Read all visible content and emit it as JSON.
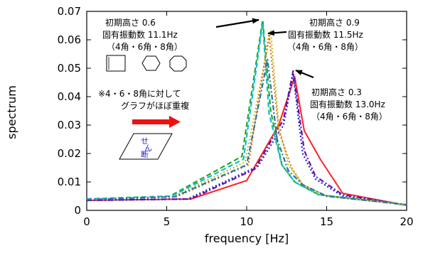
{
  "chart_data": {
    "type": "line",
    "xlabel": "frequency [Hz]",
    "ylabel": "spectrum",
    "xlim": [
      0,
      20
    ],
    "ylim": [
      0,
      0.07
    ],
    "x_ticks": [
      "0",
      "5",
      "10",
      "15",
      "20"
    ],
    "y_ticks": [
      "0",
      "0.01",
      "0.02",
      "0.03",
      "0.04",
      "0.05",
      "0.06",
      "0.07"
    ],
    "series": [
      {
        "color": "#ff2222",
        "dash": "solid",
        "points": [
          [
            0,
            0.0035
          ],
          [
            6.5,
            0.004
          ],
          [
            10,
            0.0105
          ],
          [
            12,
            0.03
          ],
          [
            13,
            0.047
          ],
          [
            13.6,
            0.028
          ],
          [
            14.6,
            0.018
          ],
          [
            16,
            0.006
          ],
          [
            20,
            0.0018
          ]
        ]
      },
      {
        "color": "#6a0dad",
        "dash": "dash-dot",
        "points": [
          [
            0,
            0.0035
          ],
          [
            6.5,
            0.004
          ],
          [
            10.5,
            0.0145
          ],
          [
            12.3,
            0.032
          ],
          [
            12.9,
            0.049
          ],
          [
            13.6,
            0.021
          ],
          [
            14.3,
            0.012
          ],
          [
            16,
            0.0055
          ],
          [
            20,
            0.0018
          ]
        ]
      },
      {
        "color": "#1f1fd0",
        "dash": "dotted",
        "points": [
          [
            0,
            0.0035
          ],
          [
            6.3,
            0.004
          ],
          [
            10.7,
            0.0155
          ],
          [
            12.3,
            0.03
          ],
          [
            12.9,
            0.048
          ],
          [
            13.5,
            0.02
          ],
          [
            14.3,
            0.011
          ],
          [
            16,
            0.005
          ],
          [
            20,
            0.0018
          ]
        ]
      },
      {
        "color": "#22aa22",
        "dash": "dashed",
        "points": [
          [
            0,
            0.004
          ],
          [
            5.2,
            0.005
          ],
          [
            9.7,
            0.019
          ],
          [
            11,
            0.067
          ],
          [
            11.5,
            0.035
          ],
          [
            12.2,
            0.016
          ],
          [
            13,
            0.01
          ],
          [
            14.5,
            0.0055
          ],
          [
            20,
            0.002
          ]
        ]
      },
      {
        "color": "#11bbcc",
        "dash": "dashed",
        "points": [
          [
            0,
            0.004
          ],
          [
            5.3,
            0.005
          ],
          [
            9.8,
            0.018
          ],
          [
            11,
            0.066
          ],
          [
            11.4,
            0.034
          ],
          [
            12.2,
            0.016
          ],
          [
            13,
            0.01
          ],
          [
            14.5,
            0.0055
          ],
          [
            20,
            0.002
          ]
        ]
      },
      {
        "color": "#c0c020",
        "dash": "dotted",
        "points": [
          [
            0,
            0.0038
          ],
          [
            5.4,
            0.0048
          ],
          [
            9.9,
            0.017
          ],
          [
            11.5,
            0.063
          ],
          [
            12,
            0.03
          ],
          [
            12.6,
            0.016
          ],
          [
            13.5,
            0.009
          ],
          [
            15,
            0.005
          ],
          [
            20,
            0.002
          ]
        ]
      },
      {
        "color": "#e07010",
        "dash": "dotted",
        "points": [
          [
            0,
            0.0038
          ],
          [
            5.6,
            0.0048
          ],
          [
            10.1,
            0.016
          ],
          [
            11.4,
            0.062
          ],
          [
            12,
            0.028
          ],
          [
            12.8,
            0.015
          ],
          [
            13.5,
            0.009
          ],
          [
            15,
            0.005
          ],
          [
            20,
            0.002
          ]
        ]
      },
      {
        "color": "#3070a0",
        "dash": "dash-dot",
        "points": [
          [
            0,
            0.0038
          ],
          [
            5.5,
            0.0048
          ],
          [
            10,
            0.016
          ],
          [
            11.3,
            0.053
          ],
          [
            11.9,
            0.025
          ],
          [
            12.6,
            0.014
          ],
          [
            13.5,
            0.009
          ],
          [
            15,
            0.005
          ],
          [
            20,
            0.002
          ]
        ]
      }
    ]
  },
  "annotations": {
    "note1_line1": "初期高さ 0.6",
    "note1_line2": "固有振動数 11.1Hz",
    "note1_line3": "（4角・6角・8角）",
    "note2_line1": "初期高さ 0.9",
    "note2_line2": "固有振動数 11.5Hz",
    "note2_line3": "（4角・6角・8角）",
    "note3_line1": "初期高さ 0.3",
    "note3_line2": "固有振動数 13.0Hz",
    "note3_line3": "（4角・6角・8角）",
    "remark_line1": "※4・6・8角に対して",
    "remark_line2": "グラフがほぼ重複",
    "shear_char1": "せ",
    "shear_char2": "ん",
    "shear_char3": "断"
  }
}
